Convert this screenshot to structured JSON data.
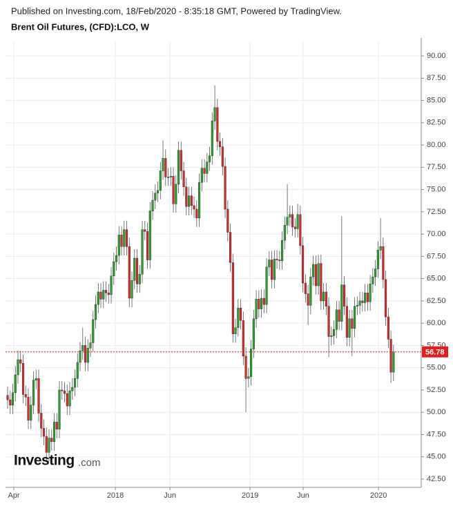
{
  "header": {
    "published": "Published on Investing.com, 18/Feb/2020 - 8:35:18 GMT, Powered by TradingView.",
    "symbol": "Brent Oil Futures, (CFD):LCO, W"
  },
  "logo": {
    "brand": "Investing",
    "suffix": ".com"
  },
  "chart_data": {
    "type": "candlestick",
    "up_color": "#2aa52a",
    "down_color": "#e02828",
    "grid": true,
    "last_price": 56.78,
    "last_price_color": "#e02020",
    "xlim": [
      -0.8,
      159.7
    ],
    "xticks": [
      {
        "value": 2.4,
        "label": "Apr"
      },
      {
        "value": 41.6,
        "label": "2018"
      },
      {
        "value": 62.7,
        "label": "Jun"
      },
      {
        "value": 93.6,
        "label": "2019"
      },
      {
        "value": 114.1,
        "label": "Jun"
      },
      {
        "value": 143.2,
        "label": "2020"
      }
    ],
    "ylim": [
      41.57,
      91.63
    ],
    "yticks": [
      {
        "value": 42.5,
        "label": "42.50"
      },
      {
        "value": 45,
        "label": "45.00"
      },
      {
        "value": 47.5,
        "label": "47.50"
      },
      {
        "value": 50,
        "label": "50.00"
      },
      {
        "value": 52.5,
        "label": "52.50"
      },
      {
        "value": 55,
        "label": "55.00"
      },
      {
        "value": 57.5,
        "label": "57.50"
      },
      {
        "value": 60,
        "label": "60.00"
      },
      {
        "value": 62.5,
        "label": "62.50"
      },
      {
        "value": 65,
        "label": "65.00"
      },
      {
        "value": 67.5,
        "label": "67.50"
      },
      {
        "value": 70,
        "label": "70.00"
      },
      {
        "value": 72.5,
        "label": "72.50"
      },
      {
        "value": 75,
        "label": "75.00"
      },
      {
        "value": 77.5,
        "label": "77.50"
      },
      {
        "value": 80,
        "label": "80.00"
      },
      {
        "value": 82.5,
        "label": "82.50"
      },
      {
        "value": 85,
        "label": "85.00"
      },
      {
        "value": 87.5,
        "label": "87.50"
      },
      {
        "value": 90,
        "label": "90.00"
      }
    ],
    "open": [
      51.9,
      51.4,
      50.8,
      52.2,
      54.2,
      55.9,
      55.5,
      52.0,
      51.7,
      49.1,
      50.8,
      53.6,
      53.8,
      49.9,
      48.2,
      47.3,
      45.5,
      47.1,
      46.7,
      48.9,
      48.1,
      52.5,
      52.4,
      52.1,
      50.7,
      52.4,
      52.8,
      53.8,
      55.6,
      56.9,
      57.5,
      55.6,
      57.2,
      57.8,
      60.4,
      62.1,
      63.5,
      62.7,
      63.7,
      63.4,
      63.2,
      65.3,
      66.9,
      67.6,
      69.9,
      68.6,
      70.5,
      68.6,
      62.8,
      64.8,
      67.3,
      64.4,
      65.5,
      70.5,
      70.3,
      67.1,
      72.6,
      73.8,
      74.6,
      74.9,
      77.1,
      78.5,
      76.4,
      76.4,
      76.5,
      73.4,
      75.6,
      79.4,
      77.1,
      75.3,
      73.1,
      74.3,
      73.2,
      72.8,
      71.8,
      75.8,
      77.4,
      76.8,
      78.1,
      78.8,
      82.7,
      84.2,
      80.4,
      79.8,
      77.6,
      72.8,
      70.2,
      66.8,
      58.8,
      59.5,
      61.7,
      60.3,
      56.3,
      53.8,
      54.0,
      57.1,
      60.5,
      62.7,
      61.6,
      62.8,
      62.1,
      66.3,
      67.1,
      64.9,
      67.2,
      67.1,
      67.0,
      69.3,
      71.0,
      71.9,
      72.2,
      70.8,
      70.6,
      72.2,
      68.7,
      64.5,
      63.3,
      62.0,
      65.2,
      66.6,
      64.2,
      66.7,
      62.5,
      63.5,
      61.9,
      58.5,
      58.6,
      59.3,
      61.5,
      60.2,
      64.3,
      61.9,
      58.4,
      60.5,
      59.4,
      61.9,
      62.0,
      62.5,
      62.3,
      63.4,
      62.4,
      64.4,
      65.2,
      66.1,
      68.2,
      68.6,
      64.9,
      60.7,
      58.2,
      54.5
    ],
    "high": [
      52.9,
      52.4,
      53.2,
      55.2,
      56.9,
      56.9,
      56.5,
      53.0,
      52.7,
      51.8,
      54.6,
      54.8,
      54.8,
      50.9,
      49.2,
      48.3,
      48.1,
      48.1,
      49.9,
      49.9,
      53.5,
      53.5,
      53.4,
      53.1,
      53.4,
      53.8,
      54.8,
      56.6,
      57.9,
      59.5,
      58.5,
      58.2,
      58.8,
      61.4,
      63.1,
      64.5,
      64.5,
      64.7,
      64.7,
      64.4,
      66.3,
      67.9,
      68.6,
      70.9,
      70.9,
      71.5,
      71.5,
      69.6,
      65.8,
      68.3,
      68.3,
      66.5,
      71.5,
      71.5,
      71.3,
      73.6,
      74.8,
      75.6,
      75.9,
      78.1,
      80.5,
      79.5,
      77.4,
      77.5,
      77.5,
      76.6,
      80.4,
      80.4,
      78.1,
      76.3,
      75.3,
      75.3,
      74.2,
      73.8,
      76.8,
      78.4,
      78.4,
      79.1,
      79.8,
      83.7,
      86.7,
      85.2,
      81.4,
      80.8,
      78.6,
      73.8,
      71.2,
      67.8,
      60.5,
      62.7,
      62.7,
      61.3,
      57.3,
      55.0,
      58.1,
      61.5,
      63.7,
      63.7,
      63.8,
      63.8,
      67.3,
      68.1,
      68.1,
      68.2,
      68.2,
      68.1,
      70.3,
      72.0,
      75.6,
      73.2,
      73.2,
      71.8,
      73.4,
      73.2,
      69.7,
      65.5,
      64.3,
      66.2,
      67.6,
      67.6,
      67.7,
      67.7,
      64.5,
      64.5,
      62.9,
      59.6,
      60.3,
      62.5,
      62.5,
      72.0,
      65.3,
      62.9,
      61.5,
      61.5,
      62.9,
      63.0,
      63.5,
      63.5,
      64.4,
      64.4,
      65.4,
      66.2,
      67.1,
      69.2,
      71.8,
      69.6,
      65.9,
      61.7,
      59.2,
      57.6
    ],
    "low": [
      50.4,
      49.8,
      49.8,
      51.2,
      53.2,
      54.5,
      51.0,
      50.7,
      48.1,
      48.1,
      49.8,
      52.6,
      48.9,
      47.2,
      46.3,
      44.4,
      44.5,
      45.7,
      45.7,
      47.1,
      47.1,
      51.4,
      51.1,
      49.7,
      49.7,
      51.4,
      51.8,
      52.8,
      54.6,
      55.9,
      54.6,
      54.6,
      56.2,
      56.8,
      59.4,
      61.1,
      61.7,
      61.7,
      62.4,
      62.2,
      62.2,
      64.3,
      65.9,
      66.6,
      67.6,
      67.6,
      67.6,
      61.8,
      61.8,
      63.8,
      63.4,
      63.4,
      64.5,
      69.3,
      66.1,
      66.1,
      71.6,
      72.8,
      73.6,
      73.9,
      76.1,
      75.4,
      75.4,
      75.4,
      72.4,
      72.4,
      74.6,
      76.1,
      74.3,
      72.1,
      72.1,
      72.2,
      71.8,
      70.8,
      70.8,
      74.8,
      75.8,
      75.8,
      77.1,
      77.8,
      81.7,
      79.4,
      78.8,
      76.6,
      71.8,
      69.2,
      65.8,
      57.8,
      57.8,
      58.5,
      59.3,
      55.3,
      50.0,
      52.8,
      53.0,
      56.1,
      59.5,
      60.6,
      60.6,
      61.1,
      61.1,
      65.3,
      63.9,
      63.9,
      66.1,
      66.0,
      66.0,
      68.3,
      70.0,
      70.9,
      69.8,
      69.6,
      69.6,
      67.7,
      63.5,
      62.3,
      59.8,
      61.0,
      64.2,
      63.2,
      63.2,
      61.5,
      61.5,
      60.9,
      56.2,
      57.5,
      57.6,
      58.3,
      59.2,
      59.2,
      60.9,
      57.4,
      57.4,
      56.3,
      58.4,
      60.9,
      61.0,
      61.3,
      61.3,
      61.4,
      61.4,
      63.4,
      64.2,
      65.1,
      67.2,
      63.9,
      59.7,
      57.2,
      53.3,
      53.5
    ],
    "close": [
      51.4,
      50.8,
      52.2,
      54.2,
      55.9,
      55.5,
      52.0,
      51.7,
      49.1,
      50.8,
      53.6,
      53.8,
      49.9,
      48.2,
      47.3,
      45.5,
      47.1,
      46.7,
      48.9,
      48.1,
      52.5,
      52.4,
      52.1,
      50.7,
      52.4,
      52.8,
      53.8,
      55.6,
      56.9,
      57.5,
      55.6,
      57.2,
      57.8,
      60.4,
      62.1,
      63.5,
      62.7,
      63.7,
      63.4,
      63.2,
      65.3,
      66.9,
      67.6,
      69.9,
      68.6,
      70.5,
      68.6,
      62.8,
      64.8,
      67.3,
      64.4,
      65.5,
      70.5,
      70.3,
      67.1,
      72.6,
      73.8,
      74.6,
      74.9,
      77.1,
      78.5,
      76.4,
      76.4,
      76.5,
      73.4,
      75.6,
      79.4,
      77.1,
      75.3,
      73.1,
      74.3,
      73.2,
      72.8,
      71.8,
      75.8,
      77.4,
      76.8,
      78.1,
      78.8,
      82.7,
      84.2,
      80.4,
      79.8,
      77.6,
      72.8,
      70.2,
      66.8,
      58.8,
      59.5,
      61.7,
      60.3,
      56.3,
      53.8,
      54.0,
      57.1,
      60.5,
      62.7,
      61.6,
      62.8,
      62.1,
      66.3,
      67.1,
      64.9,
      67.2,
      67.1,
      67.0,
      69.3,
      71.0,
      71.9,
      72.2,
      70.8,
      70.6,
      72.2,
      68.7,
      64.5,
      63.3,
      62.0,
      65.2,
      66.6,
      64.2,
      66.7,
      62.5,
      63.5,
      61.9,
      58.5,
      58.6,
      59.3,
      61.5,
      60.2,
      64.3,
      61.9,
      58.4,
      60.5,
      59.4,
      61.9,
      62.0,
      62.5,
      62.3,
      63.4,
      62.4,
      64.4,
      65.2,
      66.1,
      68.2,
      68.6,
      64.9,
      60.7,
      58.2,
      54.5,
      56.78
    ]
  }
}
